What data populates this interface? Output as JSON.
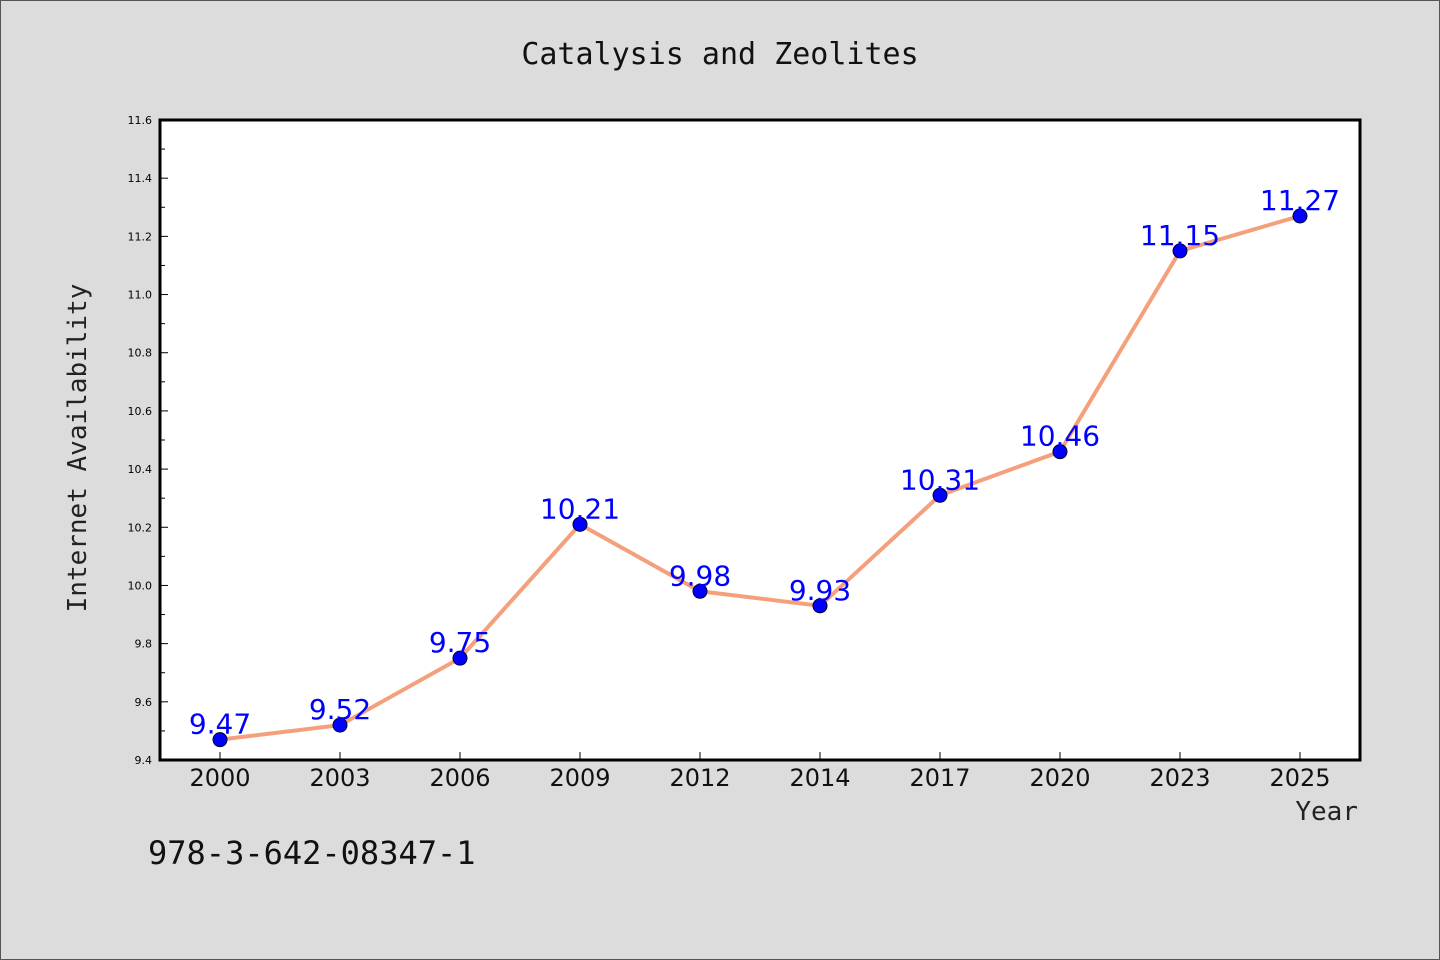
{
  "chart_data": {
    "type": "line",
    "title": "Catalysis and Zeolites",
    "xlabel": "Year",
    "ylabel": "Internet Availability",
    "categories": [
      "2000",
      "2003",
      "2006",
      "2009",
      "2012",
      "2014",
      "2017",
      "2020",
      "2023",
      "2025"
    ],
    "series": [
      {
        "values": [
          9.47,
          9.52,
          9.75,
          10.21,
          9.98,
          9.93,
          10.31,
          10.46,
          11.15,
          11.27
        ],
        "line_color": "#f4a07c",
        "marker_color": "#0000ff"
      }
    ],
    "data_labels": [
      "9.47",
      "9.52",
      "9.75",
      "10.21",
      "9.98",
      "9.93",
      "10.31",
      "10.46",
      "11.15",
      "11.27"
    ],
    "ylim": [
      9.4,
      11.6
    ],
    "yticks": [
      "9.4",
      "9.6",
      "9.8",
      "10.0",
      "10.2",
      "10.4",
      "10.6",
      "10.8",
      "11.0",
      "11.2",
      "11.4",
      "11.6"
    ],
    "grid": false,
    "legend": "none",
    "label_color": "#0000ff",
    "background_color": "#dcdcdc",
    "plot_background_color": "#ffffff"
  },
  "footer": {
    "isbn": "978-3-642-08347-1"
  }
}
